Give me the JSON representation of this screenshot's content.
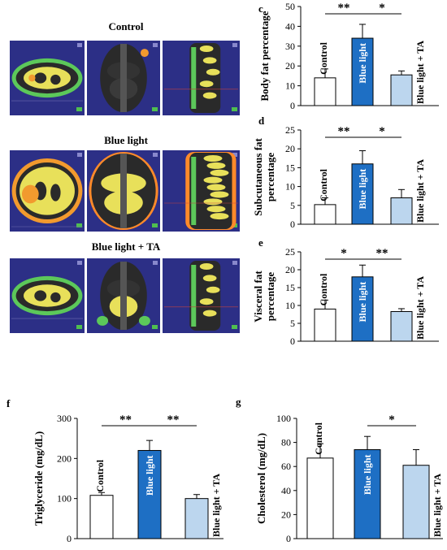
{
  "ct_panel": {
    "groups": [
      {
        "title": "Control"
      },
      {
        "title": "Blue light"
      },
      {
        "title": "Blue light + TA"
      }
    ],
    "colors": {
      "background": "#2c2f86",
      "fat_subcutaneous": "#f29a2e",
      "fat_visceral": "#e8e05a",
      "muscle": "#5cc85a",
      "tissue": "#2a2a2a",
      "edge": "#ff8a2a"
    }
  },
  "bar_colors": {
    "Control": "#ffffff",
    "Blue light": "#1e6fc4",
    "Blue light + TA": "#bcd6ee",
    "edge": "#000000"
  },
  "chart_data": [
    {
      "panel": "c",
      "type": "bar",
      "categories": [
        "Control",
        "Blue light",
        "Blue light + TA"
      ],
      "values": [
        14,
        34,
        15.5
      ],
      "errors": [
        4.5,
        7,
        2
      ],
      "ylabel": "Body fat percentage",
      "ylim": [
        0,
        50
      ],
      "yticks": [
        0,
        10,
        20,
        30,
        40,
        50
      ],
      "significance": [
        {
          "from": 0,
          "to": 1,
          "label": "**"
        },
        {
          "from": 1,
          "to": 2,
          "label": "*"
        }
      ]
    },
    {
      "panel": "d",
      "type": "bar",
      "categories": [
        "Control",
        "Blue light",
        "Blue light + TA"
      ],
      "values": [
        5.2,
        16,
        7
      ],
      "errors": [
        1.8,
        3.5,
        2.2
      ],
      "ylabel": "Subcutaneous fat percentage",
      "ylabel_lines": [
        "Subcutaneous fat",
        "percentage"
      ],
      "ylim": [
        0,
        25
      ],
      "yticks": [
        0,
        5,
        10,
        15,
        20,
        25
      ],
      "significance": [
        {
          "from": 0,
          "to": 1,
          "label": "**"
        },
        {
          "from": 1,
          "to": 2,
          "label": "*"
        }
      ]
    },
    {
      "panel": "e",
      "type": "bar",
      "categories": [
        "Control",
        "Blue light",
        "Blue light + TA"
      ],
      "values": [
        9,
        18,
        8.3
      ],
      "errors": [
        2.5,
        3.3,
        0.8
      ],
      "ylabel": "Visceral fat percentage",
      "ylabel_lines": [
        "Visceral fat",
        "percentage"
      ],
      "ylim": [
        0,
        25
      ],
      "yticks": [
        0,
        5,
        10,
        15,
        20,
        25
      ],
      "significance": [
        {
          "from": 0,
          "to": 1,
          "label": "*"
        },
        {
          "from": 1,
          "to": 2,
          "label": "**"
        }
      ]
    },
    {
      "panel": "f",
      "type": "bar",
      "categories": [
        "Control",
        "Blue light",
        "Blue light + TA"
      ],
      "values": [
        108,
        220,
        100
      ],
      "errors": [
        7,
        25,
        10
      ],
      "ylabel": "Triglyceride (mg/dL)",
      "ylim": [
        0,
        300
      ],
      "yticks": [
        0,
        100,
        200,
        300
      ],
      "significance": [
        {
          "from": 0,
          "to": 1,
          "label": "**"
        },
        {
          "from": 1,
          "to": 2,
          "label": "**"
        }
      ]
    },
    {
      "panel": "g",
      "type": "bar",
      "categories": [
        "Control",
        "Blue light",
        "Blue light + TA"
      ],
      "values": [
        67,
        74,
        61
      ],
      "errors": [
        12,
        11,
        13
      ],
      "ylabel": "Cholesterol (mg/dL)",
      "ylim": [
        0,
        100
      ],
      "yticks": [
        0,
        20,
        40,
        60,
        80,
        100
      ],
      "significance": [
        {
          "from": 1,
          "to": 2,
          "label": "*"
        }
      ]
    }
  ]
}
